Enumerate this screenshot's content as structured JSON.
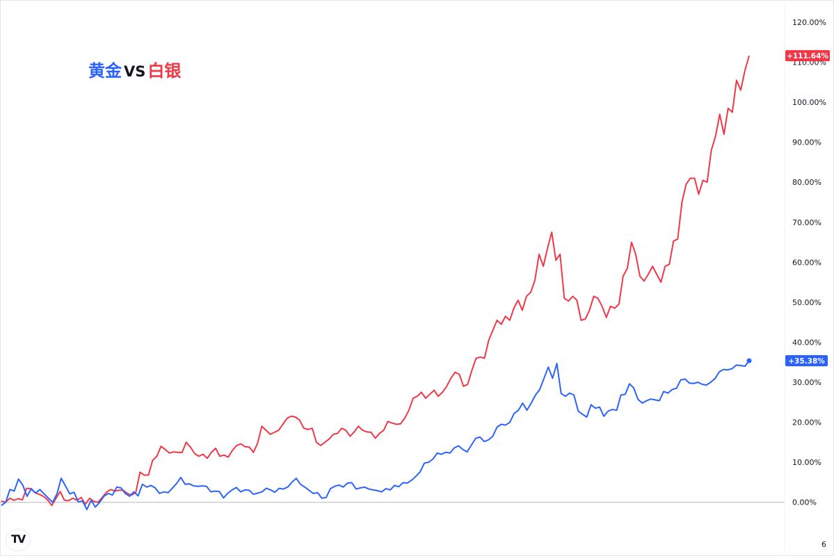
{
  "title": {
    "gold": "黄金",
    "vs": "VS",
    "silver": "白银"
  },
  "logo_text": "TV",
  "colors": {
    "gold": "#2962ff",
    "silver": "#f23645",
    "axis_text": "#131722",
    "zero_line": "#b2b5be"
  },
  "chart_data": {
    "type": "line",
    "title": "黄金 VS 白银",
    "ylim": [
      -3,
      123
    ],
    "y_tick_labels": [
      "120.00%",
      "110.00%",
      "100.00%",
      "90.00%",
      "80.00%",
      "70.00%",
      "60.00%",
      "50.00%",
      "40.00%",
      "30.00%",
      "20.00%",
      "10.00%",
      "0.00%"
    ],
    "y_ticks": [
      120,
      110,
      100,
      90,
      80,
      70,
      60,
      50,
      40,
      30,
      20,
      10,
      0
    ],
    "x_tick_label_partial": "6",
    "grid": false,
    "series": [
      {
        "name": "黄金",
        "color": "#2962ff",
        "last_label": "+35.38%",
        "values": [
          -0.8,
          0,
          3.2,
          2.8,
          5.8,
          4.3,
          1.5,
          3.4,
          2.3,
          3.2,
          2.1,
          1.0,
          0,
          2.1,
          6.0,
          4.1,
          2.1,
          2.5,
          0.1,
          0.3,
          -1.8,
          0.5,
          -1.2,
          0,
          1.5,
          2.2,
          1.8,
          3.8,
          3.6,
          2.2,
          1.5,
          2.6,
          1.6,
          4.5,
          3.8,
          4.2,
          3.6,
          2.2,
          2.6,
          2.4,
          3.5,
          4.7,
          6.2,
          4.5,
          4.6,
          4.1,
          4.0,
          4.1,
          4.0,
          2.6,
          2.8,
          2.7,
          1.1,
          2.3,
          3.1,
          3.7,
          2.6,
          3.1,
          3.0,
          2.0,
          2.3,
          2.6,
          3.5,
          3.1,
          2.5,
          3.5,
          3.3,
          3.8,
          5.0,
          6.0,
          4.5,
          3.8,
          3.0,
          2.2,
          2.4,
          1.0,
          1.2,
          3.4,
          4.0,
          4.3,
          3.8,
          4.8,
          4.9,
          3.3,
          3.6,
          3.8,
          3.3,
          3.1,
          2.9,
          2.6,
          3.4,
          3.1,
          4.2,
          3.9,
          4.9,
          4.8,
          5.5,
          6.5,
          7.6,
          9.8,
          10.0,
          10.8,
          12.3,
          12.0,
          12.5,
          12.3,
          13.6,
          14.1,
          13.2,
          12.6,
          14.3,
          16.0,
          16.3,
          15.2,
          15.6,
          16.5,
          18.8,
          19.5,
          19.3,
          20.0,
          22.2,
          23.0,
          24.8,
          23.0,
          24.8,
          26.8,
          28.2,
          31.0,
          33.8,
          31.0,
          34.7,
          27.2,
          26.5,
          27.3,
          26.8,
          22.8,
          22.0,
          21.3,
          24.4,
          23.5,
          23.8,
          21.5,
          22.8,
          23.2,
          23.0,
          26.8,
          27.0,
          29.6,
          28.6,
          25.7,
          24.8,
          25.4,
          25.8,
          25.6,
          25.4,
          27.7,
          27.3,
          28.2,
          28.5,
          30.6,
          30.8,
          29.8,
          29.7,
          30.0,
          29.5,
          29.3,
          30.0,
          30.9,
          32.6,
          33.2,
          33.1,
          33.4,
          34.3,
          34.2,
          34.0,
          35.38
        ]
      },
      {
        "name": "白银",
        "color": "#f23645",
        "last_label": "+111.64%",
        "values": [
          0.3,
          0,
          1.0,
          0.5,
          0.9,
          0.6,
          3.5,
          3.4,
          2.4,
          2.0,
          1.5,
          0.6,
          -0.8,
          1.0,
          2.7,
          0.5,
          0.4,
          1.0,
          0.5,
          1.2,
          -0.5,
          1.0,
          0.2,
          0,
          1.2,
          2.5,
          3.2,
          2.8,
          3.0,
          3.0,
          2.2,
          1.8,
          2.5,
          7.5,
          6.8,
          6.8,
          10.5,
          11.5,
          14.0,
          13.2,
          12.3,
          12.6,
          12.5,
          12.4,
          15.0,
          13.8,
          12.2,
          11.5,
          12.0,
          11.0,
          12.5,
          13.5,
          11.5,
          11.8,
          11.3,
          13.0,
          14.2,
          14.6,
          13.9,
          13.8,
          12.5,
          14.8,
          19.0,
          18.0,
          17.0,
          17.5,
          18.0,
          19.5,
          21.0,
          21.5,
          21.3,
          20.5,
          18.5,
          18.2,
          18.5,
          15.0,
          14.2,
          15.0,
          15.8,
          17.0,
          17.2,
          18.5,
          18.0,
          16.5,
          17.6,
          19.0,
          18.0,
          17.6,
          17.5,
          16.0,
          17.2,
          18.0,
          20.2,
          19.8,
          19.5,
          19.6,
          21.0,
          23.0,
          26.0,
          26.5,
          27.5,
          26.0,
          27.0,
          28.0,
          26.5,
          27.5,
          29.0,
          31.0,
          32.5,
          32.0,
          29.0,
          29.5,
          33.0,
          36.0,
          36.3,
          36.0,
          40.5,
          43.0,
          45.5,
          44.5,
          46.5,
          45.5,
          48.5,
          50.5,
          48.0,
          51.5,
          52.5,
          55.5,
          62.0,
          59.0,
          63.5,
          67.5,
          60.5,
          62.0,
          51.0,
          50.3,
          51.5,
          50.5,
          45.5,
          45.8,
          48.0,
          51.5,
          51.0,
          49.0,
          46.2,
          49.0,
          48.5,
          49.5,
          56.5,
          58.5,
          65.0,
          62.0,
          56.5,
          55.3,
          57.0,
          59.0,
          57.0,
          55.0,
          59.0,
          59.5,
          65.3,
          65.8,
          75.0,
          79.5,
          81.0,
          81.0,
          77.0,
          80.5,
          80.0,
          88.0,
          91.5,
          97.0,
          92.0,
          98.5,
          97.5,
          105.5,
          103.0,
          108.0,
          111.64
        ]
      }
    ]
  }
}
